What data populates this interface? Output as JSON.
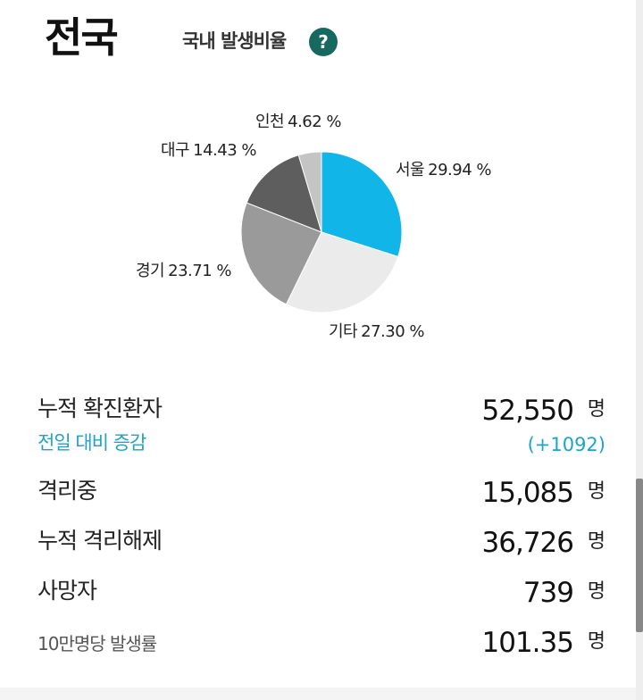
{
  "header": {
    "region": "전국",
    "subtitle": "국내 발생비율",
    "help_icon_char": "?"
  },
  "chart_data": {
    "type": "pie",
    "slices": [
      {
        "label": "서울",
        "value": 29.94,
        "text": "29.94 %",
        "color": "#12b5e8"
      },
      {
        "label": "기타",
        "value": 27.3,
        "text": "27.30 %",
        "color": "#ebebeb"
      },
      {
        "label": "경기",
        "value": 23.71,
        "text": "23.71 %",
        "color": "#9a9a9a"
      },
      {
        "label": "대구",
        "value": 14.43,
        "text": "14.43 %",
        "color": "#5e5e5e"
      },
      {
        "label": "인천",
        "value": 4.62,
        "text": "4.62 %",
        "color": "#c4c4c4"
      }
    ]
  },
  "stats": {
    "confirmed": {
      "label": "누적 확진환자",
      "value": "52,550",
      "unit": "명"
    },
    "diff": {
      "label": "전일 대비 증감",
      "value": "(+1092)"
    },
    "isolated": {
      "label": "격리중",
      "value": "15,085",
      "unit": "명"
    },
    "released": {
      "label": "누적 격리해제",
      "value": "36,726",
      "unit": "명"
    },
    "deaths": {
      "label": "사망자",
      "value": "739",
      "unit": "명"
    },
    "rate": {
      "label": "10만명당 발생률",
      "value": "101.35",
      "unit": "명"
    }
  },
  "colors": {
    "accent": "#1fa3c8",
    "help_button": "#17685e"
  }
}
